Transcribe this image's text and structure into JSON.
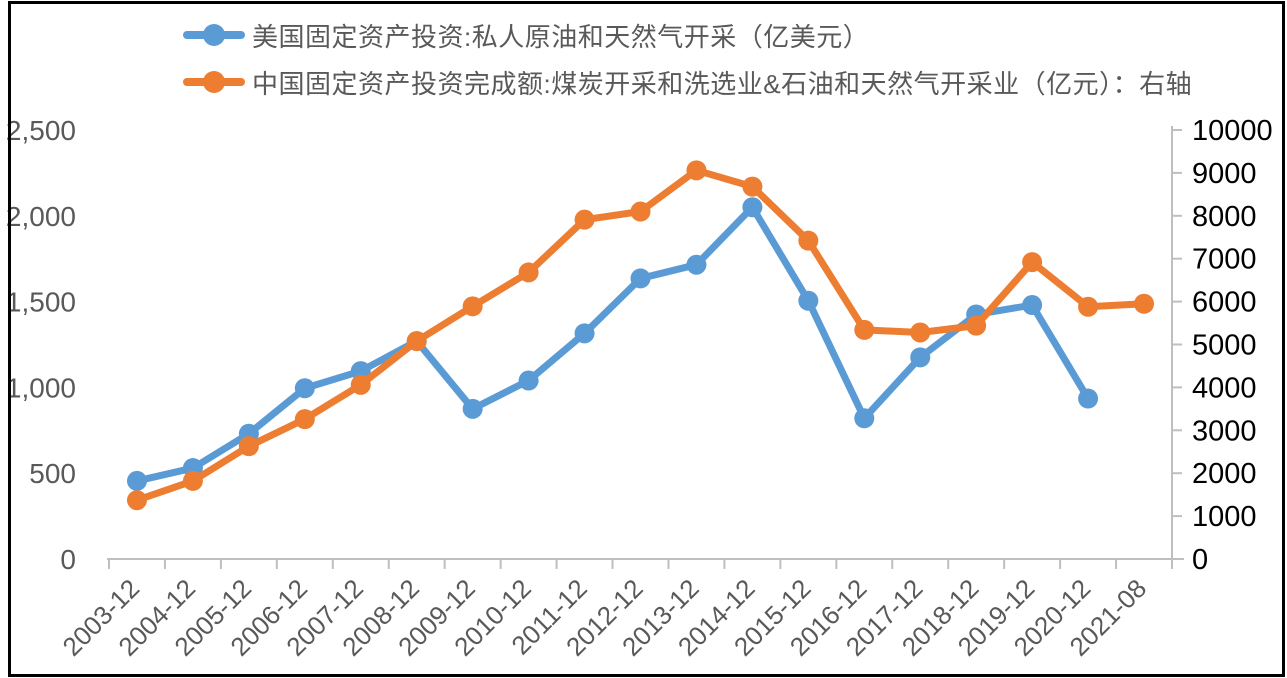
{
  "chart_data": {
    "type": "line",
    "title": "",
    "grid": "off",
    "legend_position": "top-left",
    "categories": [
      "2003-12",
      "2004-12",
      "2005-12",
      "2006-12",
      "2007-12",
      "2008-12",
      "2009-12",
      "2010-12",
      "2011-12",
      "2012-12",
      "2013-12",
      "2014-12",
      "2015-12",
      "2016-12",
      "2017-12",
      "2018-12",
      "2019-12",
      "2020-12",
      "2021-08"
    ],
    "series": [
      {
        "name": "美国固定资产投资:私人原油和天然气开采（亿美元）",
        "axis": "left",
        "color": "#5B9BD5",
        "values": [
          455,
          530,
          730,
          995,
          1095,
          1270,
          875,
          1040,
          1315,
          1635,
          1715,
          2050,
          1505,
          820,
          1175,
          1425,
          1480,
          935,
          null
        ]
      },
      {
        "name": "中国固定资产投资完成额:煤炭开采和洗选业&石油和天然气开采业（亿元）：右轴",
        "axis": "right",
        "color": "#ED7D31",
        "values": [
          1370,
          1820,
          2630,
          3260,
          4060,
          5080,
          5890,
          6680,
          7910,
          8100,
          9060,
          8680,
          7420,
          5340,
          5280,
          5440,
          6920,
          5880,
          5950
        ]
      }
    ],
    "left_axis": {
      "min": 0,
      "max": 2500,
      "step": 500,
      "tick_labels": [
        "0",
        "500",
        "1,000",
        "1,500",
        "2,000",
        "2,500"
      ],
      "label_color": "#595959"
    },
    "right_axis": {
      "min": 0,
      "max": 10000,
      "step": 1000,
      "tick_labels": [
        "0",
        "1000",
        "2000",
        "3000",
        "4000",
        "5000",
        "6000",
        "7000",
        "8000",
        "9000",
        "10000"
      ],
      "label_color": "#000000"
    },
    "x_axis": {
      "label_color": "#595959",
      "label_rotation_deg": -45
    },
    "axis_line_color": "#BFBFBF",
    "frame_color": "#000000"
  }
}
